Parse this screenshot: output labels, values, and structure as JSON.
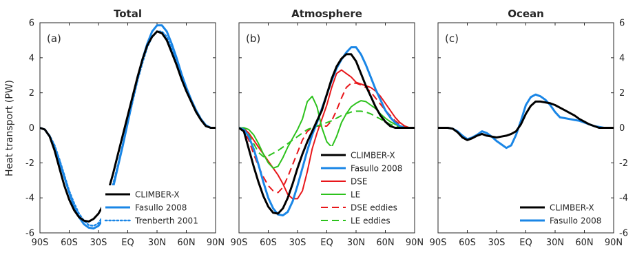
{
  "ylabel": "Heat transport (PW)",
  "chart_data": [
    {
      "type": "line",
      "title": "Total",
      "panel_label": "(a)",
      "xlabel": "",
      "ylabel": "Heat transport (PW)",
      "xlim": [
        -90,
        90
      ],
      "ylim": [
        -6,
        6
      ],
      "x_ticks": [
        -90,
        -60,
        -30,
        0,
        30,
        60,
        90
      ],
      "x_tick_labels": [
        "90S",
        "60S",
        "30S",
        "EQ",
        "30N",
        "60N",
        "90N"
      ],
      "y_ticks": [
        -6,
        -4,
        -2,
        0,
        2,
        4,
        6
      ],
      "y_tick_labels": [
        "-6",
        "-4",
        "-2",
        "0",
        "2",
        "4",
        "6"
      ],
      "legend_position": "bottom-right",
      "series": [
        {
          "name": "Fasullo 2008",
          "color": "#1a86e6",
          "dash": "solid",
          "width": 3,
          "x": [
            -90,
            -85,
            -80,
            -75,
            -70,
            -65,
            -60,
            -55,
            -50,
            -45,
            -40,
            -35,
            -30,
            -25,
            -20,
            -15,
            -10,
            -5,
            0,
            5,
            10,
            15,
            20,
            25,
            30,
            35,
            40,
            45,
            50,
            55,
            60,
            65,
            70,
            75,
            80,
            85,
            90
          ],
          "y": [
            0,
            -0.1,
            -0.5,
            -1.1,
            -1.9,
            -2.8,
            -3.7,
            -4.5,
            -5.1,
            -5.5,
            -5.7,
            -5.75,
            -5.6,
            -5.2,
            -4.4,
            -3.4,
            -2.2,
            -1,
            0.3,
            1.6,
            2.8,
            3.9,
            4.8,
            5.5,
            5.85,
            5.85,
            5.5,
            4.8,
            4,
            3.1,
            2.3,
            1.6,
            1,
            0.5,
            0.15,
            0,
            0
          ]
        },
        {
          "name": "Trenberth 2001",
          "color": "#1a86e6",
          "dash": "dotted",
          "width": 2.5,
          "x": [
            -90,
            -85,
            -80,
            -75,
            -70,
            -65,
            -60,
            -55,
            -50,
            -45,
            -40,
            -35,
            -30,
            -25,
            -20,
            -15,
            -10,
            -5,
            0,
            5,
            10,
            15,
            20,
            25,
            30,
            35,
            40,
            45,
            50,
            55,
            60,
            65,
            70,
            75,
            80,
            85,
            90
          ],
          "y": [
            0,
            -0.1,
            -0.45,
            -1,
            -1.8,
            -2.7,
            -3.6,
            -4.3,
            -4.9,
            -5.3,
            -5.55,
            -5.6,
            -5.45,
            -5,
            -4.2,
            -3.2,
            -2.1,
            -0.9,
            0.3,
            1.5,
            2.7,
            3.7,
            4.6,
            5.2,
            5.5,
            5.5,
            5.2,
            4.5,
            3.8,
            3,
            2.2,
            1.5,
            0.9,
            0.45,
            0.1,
            0,
            0
          ]
        },
        {
          "name": "CLIMBER-X",
          "color": "#000000",
          "dash": "solid",
          "width": 3,
          "x": [
            -90,
            -85,
            -80,
            -75,
            -70,
            -65,
            -60,
            -55,
            -50,
            -45,
            -40,
            -35,
            -30,
            -25,
            -20,
            -15,
            -10,
            -5,
            0,
            5,
            10,
            15,
            20,
            25,
            30,
            35,
            40,
            45,
            50,
            55,
            60,
            65,
            70,
            75,
            80,
            85,
            90
          ],
          "y": [
            0,
            -0.1,
            -0.5,
            -1.3,
            -2.3,
            -3.3,
            -4.1,
            -4.7,
            -5.1,
            -5.3,
            -5.35,
            -5.2,
            -4.9,
            -4.4,
            -3.6,
            -2.6,
            -1.5,
            -0.4,
            0.7,
            1.8,
            2.9,
            3.9,
            4.7,
            5.2,
            5.5,
            5.4,
            5,
            4.3,
            3.6,
            2.8,
            2.1,
            1.5,
            0.9,
            0.45,
            0.1,
            0,
            0
          ]
        }
      ],
      "legend": [
        "CLIMBER-X",
        "Fasullo 2008",
        "Trenberth 2001"
      ]
    },
    {
      "type": "line",
      "title": "Atmosphere",
      "panel_label": "(b)",
      "xlabel": "",
      "ylabel": "",
      "xlim": [
        -90,
        90
      ],
      "ylim": [
        -6,
        6
      ],
      "x_ticks": [
        -90,
        -60,
        -30,
        0,
        30,
        60,
        90
      ],
      "x_tick_labels": [
        "90S",
        "60S",
        "30S",
        "EQ",
        "30N",
        "60N",
        "90N"
      ],
      "y_ticks": [
        -6,
        -4,
        -2,
        0,
        2,
        4,
        6
      ],
      "legend_position": "bottom-right",
      "series": [
        {
          "name": "DSE",
          "color": "#e8161a",
          "dash": "solid",
          "width": 2,
          "x": [
            -90,
            -85,
            -80,
            -75,
            -70,
            -65,
            -60,
            -55,
            -50,
            -45,
            -40,
            -35,
            -30,
            -25,
            -20,
            -15,
            -10,
            -5,
            0,
            5,
            10,
            15,
            20,
            25,
            30,
            35,
            40,
            45,
            50,
            55,
            60,
            65,
            70,
            75,
            80,
            85,
            90
          ],
          "y": [
            0,
            -0.05,
            -0.3,
            -0.7,
            -1.1,
            -1.5,
            -1.9,
            -2.3,
            -2.7,
            -3.2,
            -3.8,
            -4.05,
            -4.05,
            -3.6,
            -2.5,
            -1.2,
            -0.3,
            0.5,
            1.3,
            2.3,
            3.1,
            3.3,
            3.1,
            2.9,
            2.6,
            2.5,
            2.4,
            2.3,
            2.1,
            1.8,
            1.4,
            1,
            0.6,
            0.3,
            0.1,
            0,
            0
          ]
        },
        {
          "name": "LE",
          "color": "#2cc21c",
          "dash": "solid",
          "width": 2,
          "x": [
            -90,
            -85,
            -80,
            -75,
            -70,
            -65,
            -60,
            -55,
            -50,
            -45,
            -40,
            -35,
            -30,
            -25,
            -20,
            -15,
            -10,
            -5,
            0,
            5,
            10,
            15,
            20,
            25,
            30,
            35,
            40,
            45,
            50,
            55,
            60,
            65,
            70,
            75,
            80,
            85,
            90
          ],
          "y": [
            0,
            0,
            -0.1,
            -0.4,
            -0.9,
            -1.5,
            -2,
            -2.3,
            -2.2,
            -1.7,
            -1.1,
            -0.6,
            -0.1,
            0.5,
            1.5,
            1.8,
            1.2,
            0,
            -0.8,
            -1.1,
            -0.5,
            0.3,
            0.8,
            1.2,
            1.4,
            1.55,
            1.5,
            1.3,
            1.1,
            0.8,
            0.55,
            0.35,
            0.2,
            0.1,
            0.05,
            0,
            0
          ]
        },
        {
          "name": "DSE eddies",
          "color": "#e8161a",
          "dash": "dashed",
          "width": 2,
          "x": [
            -90,
            -85,
            -80,
            -75,
            -70,
            -65,
            -60,
            -55,
            -50,
            -45,
            -40,
            -35,
            -30,
            -25,
            -20,
            -15,
            -10,
            -5,
            0,
            5,
            10,
            15,
            20,
            25,
            30,
            35,
            40,
            45,
            50,
            55,
            60,
            65,
            70,
            75,
            80,
            85,
            90
          ],
          "y": [
            0,
            -0.2,
            -0.7,
            -1.5,
            -2.2,
            -2.8,
            -3.3,
            -3.6,
            -3.7,
            -3.4,
            -2.8,
            -2.1,
            -1.4,
            -0.7,
            -0.2,
            0,
            0.1,
            0.1,
            0.1,
            0.4,
            1,
            1.7,
            2.3,
            2.55,
            2.55,
            2.45,
            2.3,
            2.05,
            1.7,
            1.35,
            1,
            0.7,
            0.4,
            0.2,
            0.05,
            0,
            0
          ]
        },
        {
          "name": "LE eddies",
          "color": "#2cc21c",
          "dash": "dashed",
          "width": 2,
          "x": [
            -90,
            -85,
            -80,
            -75,
            -70,
            -65,
            -60,
            -55,
            -50,
            -45,
            -40,
            -35,
            -30,
            -25,
            -20,
            -15,
            -10,
            -5,
            0,
            5,
            10,
            15,
            20,
            25,
            30,
            35,
            40,
            45,
            50,
            55,
            60,
            65,
            70,
            75,
            80,
            85,
            90
          ],
          "y": [
            0,
            -0.1,
            -0.4,
            -0.9,
            -1.4,
            -1.65,
            -1.6,
            -1.45,
            -1.3,
            -1.1,
            -0.9,
            -0.7,
            -0.5,
            -0.3,
            -0.1,
            0,
            0.1,
            0.2,
            0.3,
            0.4,
            0.55,
            0.7,
            0.8,
            0.9,
            0.95,
            0.95,
            0.9,
            0.8,
            0.65,
            0.5,
            0.35,
            0.2,
            0.1,
            0.05,
            0,
            0,
            0
          ]
        },
        {
          "name": "Fasullo 2008",
          "color": "#1a86e6",
          "dash": "solid",
          "width": 3,
          "x": [
            -90,
            -85,
            -80,
            -75,
            -70,
            -65,
            -60,
            -55,
            -50,
            -45,
            -40,
            -35,
            -30,
            -25,
            -20,
            -15,
            -10,
            -5,
            0,
            5,
            10,
            15,
            20,
            25,
            30,
            35,
            40,
            45,
            50,
            55,
            60,
            65,
            70,
            75,
            80,
            85,
            90
          ],
          "y": [
            0,
            -0.1,
            -0.5,
            -1.2,
            -2.1,
            -3.1,
            -4,
            -4.6,
            -4.95,
            -5,
            -4.8,
            -4.2,
            -3.3,
            -2.3,
            -1.3,
            -0.4,
            0.3,
            1.1,
            1.9,
            2.7,
            3.4,
            3.9,
            4.3,
            4.6,
            4.6,
            4.2,
            3.6,
            2.9,
            2.2,
            1.6,
            1,
            0.6,
            0.3,
            0.1,
            0,
            0,
            0
          ]
        },
        {
          "name": "CLIMBER-X",
          "color": "#000000",
          "dash": "solid",
          "width": 3,
          "x": [
            -90,
            -85,
            -80,
            -75,
            -70,
            -65,
            -60,
            -55,
            -50,
            -45,
            -40,
            -35,
            -30,
            -25,
            -20,
            -15,
            -10,
            -5,
            0,
            5,
            10,
            15,
            20,
            25,
            30,
            35,
            40,
            45,
            50,
            55,
            60,
            65,
            70,
            75,
            80,
            85,
            90
          ],
          "y": [
            0,
            -0.2,
            -1.2,
            -2.2,
            -3.1,
            -3.9,
            -4.5,
            -4.85,
            -4.9,
            -4.6,
            -4,
            -3.2,
            -2.3,
            -1.5,
            -0.8,
            -0.2,
            0.4,
            1,
            1.9,
            2.8,
            3.5,
            3.95,
            4.2,
            4.2,
            3.8,
            3.1,
            2.4,
            1.8,
            1.2,
            0.7,
            0.35,
            0.1,
            0,
            0,
            0,
            0,
            0
          ]
        }
      ],
      "legend": [
        "CLIMBER-X",
        "Fasullo 2008",
        "DSE",
        "LE",
        "DSE eddies",
        "LE eddies"
      ]
    },
    {
      "type": "line",
      "title": "Ocean",
      "panel_label": "(c)",
      "xlabel": "",
      "ylabel": "",
      "xlim": [
        -90,
        90
      ],
      "ylim": [
        -6,
        6
      ],
      "x_ticks": [
        -90,
        -60,
        -30,
        0,
        30,
        60,
        90
      ],
      "x_tick_labels": [
        "90S",
        "60S",
        "30S",
        "EQ",
        "30N",
        "60N",
        "90N"
      ],
      "y_ticks": [
        -6,
        -4,
        -2,
        0,
        2,
        4,
        6
      ],
      "y_tick_labels": [
        "-6",
        "-4",
        "-2",
        "0",
        "2",
        "4",
        "6"
      ],
      "y_axis_side": "right",
      "legend_position": "bottom-right",
      "series": [
        {
          "name": "Fasullo 2008",
          "color": "#1a86e6",
          "dash": "solid",
          "width": 3,
          "x": [
            -90,
            -85,
            -80,
            -75,
            -70,
            -65,
            -60,
            -55,
            -50,
            -45,
            -40,
            -35,
            -30,
            -25,
            -20,
            -15,
            -10,
            -5,
            0,
            5,
            10,
            15,
            20,
            25,
            30,
            35,
            40,
            45,
            50,
            55,
            60,
            65,
            70,
            75,
            80,
            85,
            90
          ],
          "y": [
            0,
            0,
            0,
            -0.05,
            -0.2,
            -0.45,
            -0.65,
            -0.55,
            -0.4,
            -0.2,
            -0.3,
            -0.5,
            -0.75,
            -0.95,
            -1.15,
            -1,
            -0.4,
            0.4,
            1.3,
            1.75,
            1.9,
            1.8,
            1.6,
            1.3,
            0.9,
            0.6,
            0.55,
            0.5,
            0.45,
            0.4,
            0.3,
            0.2,
            0.1,
            0.05,
            0,
            0,
            0
          ]
        },
        {
          "name": "CLIMBER-X",
          "color": "#000000",
          "dash": "solid",
          "width": 3,
          "x": [
            -90,
            -85,
            -80,
            -75,
            -70,
            -65,
            -60,
            -55,
            -50,
            -45,
            -40,
            -35,
            -30,
            -25,
            -20,
            -15,
            -10,
            -5,
            0,
            5,
            10,
            15,
            20,
            25,
            30,
            35,
            40,
            45,
            50,
            55,
            60,
            65,
            70,
            75,
            80,
            85,
            90
          ],
          "y": [
            0,
            0,
            0,
            -0.05,
            -0.25,
            -0.55,
            -0.7,
            -0.6,
            -0.45,
            -0.35,
            -0.45,
            -0.5,
            -0.55,
            -0.5,
            -0.45,
            -0.35,
            -0.2,
            0.2,
            0.8,
            1.25,
            1.5,
            1.5,
            1.45,
            1.4,
            1.3,
            1.15,
            1,
            0.85,
            0.7,
            0.5,
            0.35,
            0.2,
            0.1,
            0,
            0,
            0,
            0
          ]
        }
      ],
      "legend": [
        "CLIMBER-X",
        "Fasullo 2008"
      ]
    }
  ]
}
